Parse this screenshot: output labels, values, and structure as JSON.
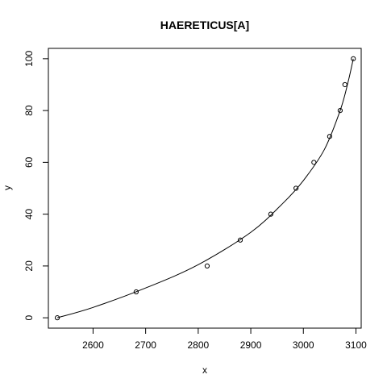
{
  "chart_data": {
    "type": "scatter",
    "title": "HAERETICUS[A]",
    "xlabel": "x",
    "ylabel": "y",
    "xlim": [
      2515,
      3110
    ],
    "ylim": [
      -4,
      104
    ],
    "x_ticks": [
      2600,
      2700,
      2800,
      2900,
      3000,
      3100
    ],
    "y_ticks": [
      0,
      20,
      40,
      60,
      80,
      100
    ],
    "grid": false,
    "legend": "none",
    "points": [
      {
        "x": 2532,
        "y": 0
      },
      {
        "x": 2682,
        "y": 10
      },
      {
        "x": 2817,
        "y": 20
      },
      {
        "x": 2880,
        "y": 30
      },
      {
        "x": 2938,
        "y": 40
      },
      {
        "x": 2986,
        "y": 50
      },
      {
        "x": 3020,
        "y": 60
      },
      {
        "x": 3050,
        "y": 70
      },
      {
        "x": 3070,
        "y": 80
      },
      {
        "x": 3079,
        "y": 90
      },
      {
        "x": 3095,
        "y": 100
      }
    ],
    "fit_curve": [
      {
        "x": 2532,
        "y": 0
      },
      {
        "x": 2600,
        "y": 4
      },
      {
        "x": 2700,
        "y": 11.5
      },
      {
        "x": 2800,
        "y": 20.5
      },
      {
        "x": 2900,
        "y": 33
      },
      {
        "x": 2960,
        "y": 44
      },
      {
        "x": 3000,
        "y": 53
      },
      {
        "x": 3040,
        "y": 65
      },
      {
        "x": 3070,
        "y": 80
      },
      {
        "x": 3085,
        "y": 91
      },
      {
        "x": 3095,
        "y": 100
      }
    ]
  }
}
